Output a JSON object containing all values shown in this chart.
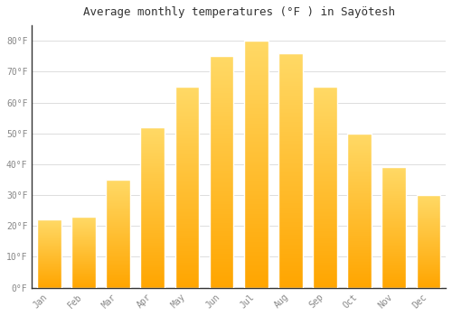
{
  "title": "Average monthly temperatures (°F ) in Sayötesh",
  "months": [
    "Jan",
    "Feb",
    "Mar",
    "Apr",
    "May",
    "Jun",
    "Jul",
    "Aug",
    "Sep",
    "Oct",
    "Nov",
    "Dec"
  ],
  "values": [
    22,
    23,
    35,
    52,
    65,
    75,
    80,
    76,
    65,
    50,
    39,
    30
  ],
  "bar_color_bottom": "#FFA500",
  "bar_color_top": "#FFD966",
  "bar_edge_color": "#E8960A",
  "background_color": "#ffffff",
  "grid_color": "#dddddd",
  "ylim": [
    0,
    85
  ],
  "yticks": [
    0,
    10,
    20,
    30,
    40,
    50,
    60,
    70,
    80
  ],
  "ytick_labels": [
    "0°F",
    "10°F",
    "20°F",
    "30°F",
    "40°F",
    "50°F",
    "60°F",
    "70°F",
    "80°F"
  ],
  "title_fontsize": 9,
  "tick_fontsize": 7,
  "tick_color": "#888888",
  "axis_color": "#333333"
}
